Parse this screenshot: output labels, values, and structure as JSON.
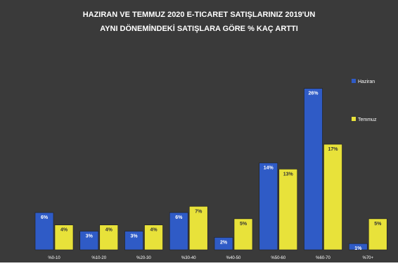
{
  "chart_data": {
    "type": "bar",
    "title": "HAZIRAN VE TEMMUZ 2020 E-TICARET SATIŞLARINIZ 2019'UN",
    "subtitle": "AYNI DÖNEMİNDEKİ SATIŞLARA GÖRE % KAÇ ARTTI",
    "xlabel": "",
    "ylabel": "",
    "categories": [
      "%0-10",
      "%10-20",
      "%20-30",
      "%30-40",
      "%40-50",
      "%50-60",
      "%60-70",
      "%70+"
    ],
    "series": [
      {
        "name": "Haziran",
        "color": "#2f5bc6",
        "values": [
          6,
          3,
          3,
          6,
          2,
          14,
          26,
          1
        ]
      },
      {
        "name": "Temmuz",
        "color": "#e8e23a",
        "values": [
          4,
          4,
          4,
          7,
          5,
          13,
          17,
          5
        ]
      }
    ],
    "data_labels": [
      [
        "6%",
        "3%",
        "3%",
        "6%",
        "2%",
        "14%",
        "26%",
        "1%"
      ],
      [
        "4%",
        "4%",
        "4%",
        "7%",
        "5%",
        "13%",
        "17%",
        "5%"
      ]
    ],
    "ylim": [
      0,
      28
    ],
    "grid": false,
    "legend_position": "right",
    "background_color": "#3a3a3a",
    "text_color": "#ffffff"
  }
}
